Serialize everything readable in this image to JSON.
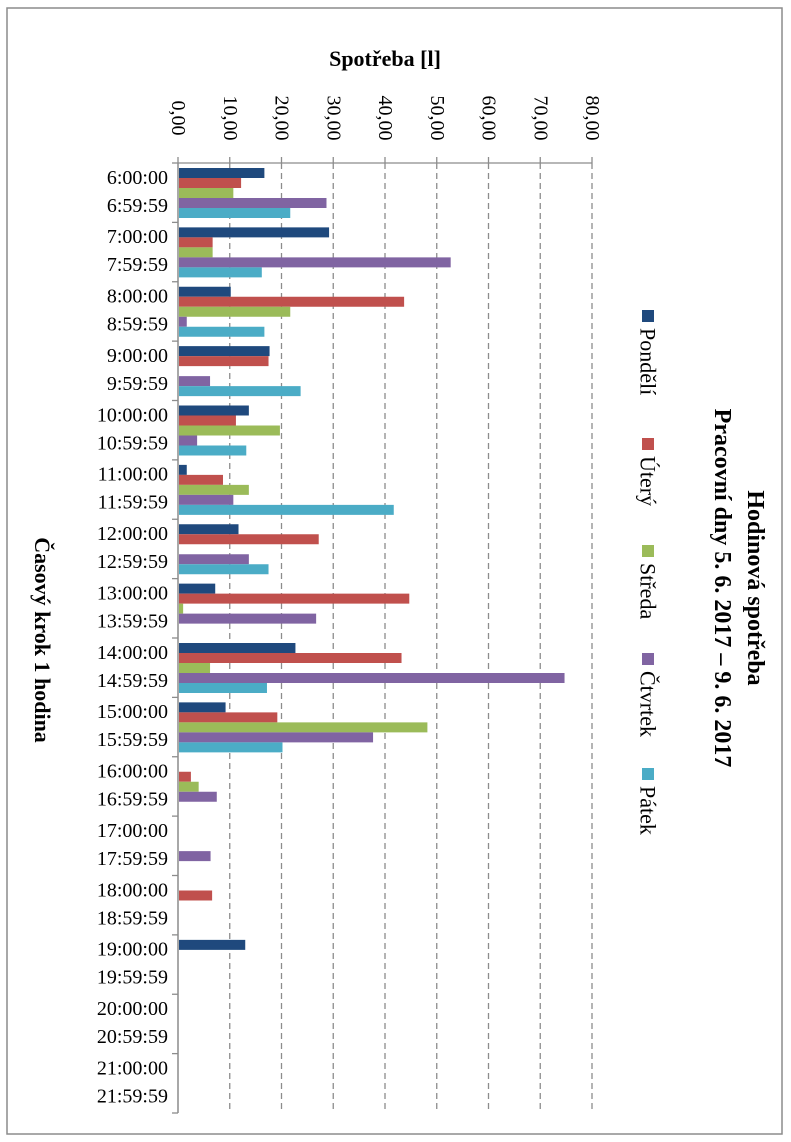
{
  "chart_data": {
    "type": "bar",
    "orientation": "horizontal",
    "title": "Hodinová spotřeba",
    "subtitle": "Pracovní dny 5. 6. 2017 – 9. 6. 2017",
    "xlabel": "Spotřeba [l]",
    "ylabel": "Časový krok 1 hodina",
    "xlim": [
      0,
      80
    ],
    "x_ticks": [
      "0,00",
      "10,00",
      "20,00",
      "30,00",
      "40,00",
      "50,00",
      "60,00",
      "70,00",
      "80,00"
    ],
    "grid": "vertical dashed",
    "legend_position": "right",
    "categories": [
      "6:00:00\n6:59:59",
      "7:00:00\n7:59:59",
      "8:00:00\n8:59:59",
      "9:00:00\n9:59:59",
      "10:00:00\n10:59:59",
      "11:00:00\n11:59:59",
      "12:00:00\n12:59:59",
      "13:00:00\n13:59:59",
      "14:00:00\n14:59:59",
      "15:00:00\n15:59:59",
      "16:00:00\n16:59:59",
      "17:00:00\n17:59:59",
      "18:00:00\n18:59:59",
      "19:00:00\n19:59:59",
      "20:00:00\n20:59:59",
      "21:00:00\n21:59:59"
    ],
    "category_labels": [
      "6:00:00",
      "6:59:59",
      "7:00:00",
      "7:59:59",
      "8:00:00",
      "8:59:59",
      "9:00:00",
      "9:59:59",
      "10:00:00",
      "10:59:59",
      "11:00:00",
      "11:59:59",
      "12:00:00",
      "12:59:59",
      "13:00:00",
      "13:59:59",
      "14:00:00",
      "14:59:59",
      "15:00:00",
      "15:59:59",
      "16:00:00",
      "16:59:59",
      "17:00:00",
      "17:59:59",
      "18:00:00",
      "18:59:59",
      "19:00:00",
      "19:59:59",
      "20:00:00",
      "20:59:59",
      "21:00:00",
      "21:59:59"
    ],
    "series": [
      {
        "name": "Pondělí",
        "color": "#1f497d",
        "values": [
          16.5,
          29.0,
          10.0,
          17.5,
          13.5,
          1.5,
          11.5,
          7.0,
          22.5,
          9.0,
          0,
          0,
          0,
          12.8,
          0,
          0
        ]
      },
      {
        "name": "Úterý",
        "color": "#c0504d",
        "values": [
          12.0,
          6.5,
          43.5,
          17.3,
          11.0,
          8.5,
          27.0,
          44.5,
          43.0,
          19.0,
          2.3,
          0,
          6.4,
          0,
          0,
          0
        ]
      },
      {
        "name": "Středa",
        "color": "#9bbb59",
        "values": [
          10.5,
          6.5,
          21.5,
          0,
          19.5,
          13.5,
          0,
          0.8,
          6.0,
          48.0,
          3.8,
          0,
          0,
          0,
          0,
          0
        ]
      },
      {
        "name": "Čtvrtek",
        "color": "#8064a2",
        "values": [
          28.5,
          52.5,
          1.5,
          6.0,
          3.5,
          10.5,
          13.5,
          26.5,
          74.5,
          37.5,
          7.3,
          6.1,
          0,
          0,
          0,
          0
        ]
      },
      {
        "name": "Pátek",
        "color": "#4bacc6",
        "values": [
          21.5,
          16.0,
          16.5,
          23.5,
          13.0,
          41.5,
          17.3,
          0,
          17.0,
          20.0,
          0,
          0,
          0,
          0,
          0,
          0
        ]
      }
    ]
  }
}
